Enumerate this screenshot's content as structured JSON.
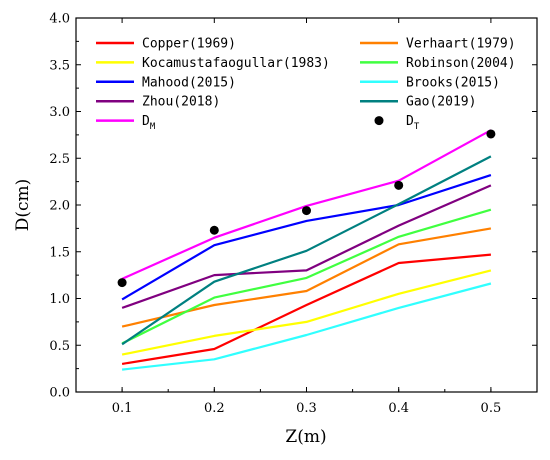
{
  "chart_data": {
    "type": "line",
    "xlabel": "Z(m)",
    "ylabel": "D(cm)",
    "xlim": [
      0.05,
      0.55
    ],
    "ylim": [
      0.0,
      4.0
    ],
    "x_ticks": [
      "0.1",
      "0.2",
      "0.3",
      "0.4",
      "0.5"
    ],
    "y_ticks": [
      "0.0",
      "0.5",
      "1.0",
      "1.5",
      "2.0",
      "2.5",
      "3.0",
      "3.5",
      "4.0"
    ],
    "x": [
      0.1,
      0.2,
      0.3,
      0.4,
      0.5
    ],
    "legend_position": "top",
    "series": [
      {
        "name": "Copper(1969)",
        "color": "#ff0000",
        "values": [
          0.3,
          0.46,
          0.93,
          1.38,
          1.47
        ]
      },
      {
        "name": "Verhaart(1979)",
        "color": "#ff8000",
        "values": [
          0.7,
          0.93,
          1.08,
          1.58,
          1.75
        ]
      },
      {
        "name": "Kocamustafaogullar(1983)",
        "color": "#ffff00",
        "values": [
          0.4,
          0.6,
          0.75,
          1.05,
          1.3
        ]
      },
      {
        "name": "Robinson(2004)",
        "color": "#40ff40",
        "values": [
          0.52,
          1.01,
          1.22,
          1.66,
          1.95
        ]
      },
      {
        "name": "Mahood(2015)",
        "color": "#0000ff",
        "values": [
          0.99,
          1.57,
          1.83,
          2.0,
          2.32
        ]
      },
      {
        "name": "Brooks(2015)",
        "color": "#30ffff",
        "values": [
          0.24,
          0.35,
          0.61,
          0.9,
          1.16
        ]
      },
      {
        "name": "Zhou(2018)",
        "color": "#800080",
        "values": [
          0.9,
          1.25,
          1.3,
          1.78,
          2.21
        ]
      },
      {
        "name": "Gao(2019)",
        "color": "#008080",
        "values": [
          0.51,
          1.18,
          1.51,
          2.01,
          2.52
        ]
      },
      {
        "name": "D",
        "subscript": "M",
        "color": "#ff00ff",
        "values": [
          1.21,
          1.65,
          1.99,
          2.26,
          2.8
        ]
      }
    ],
    "points": {
      "name": "D",
      "subscript": "T",
      "color": "#000000",
      "values": [
        1.17,
        1.73,
        1.94,
        2.21,
        2.76
      ]
    }
  }
}
